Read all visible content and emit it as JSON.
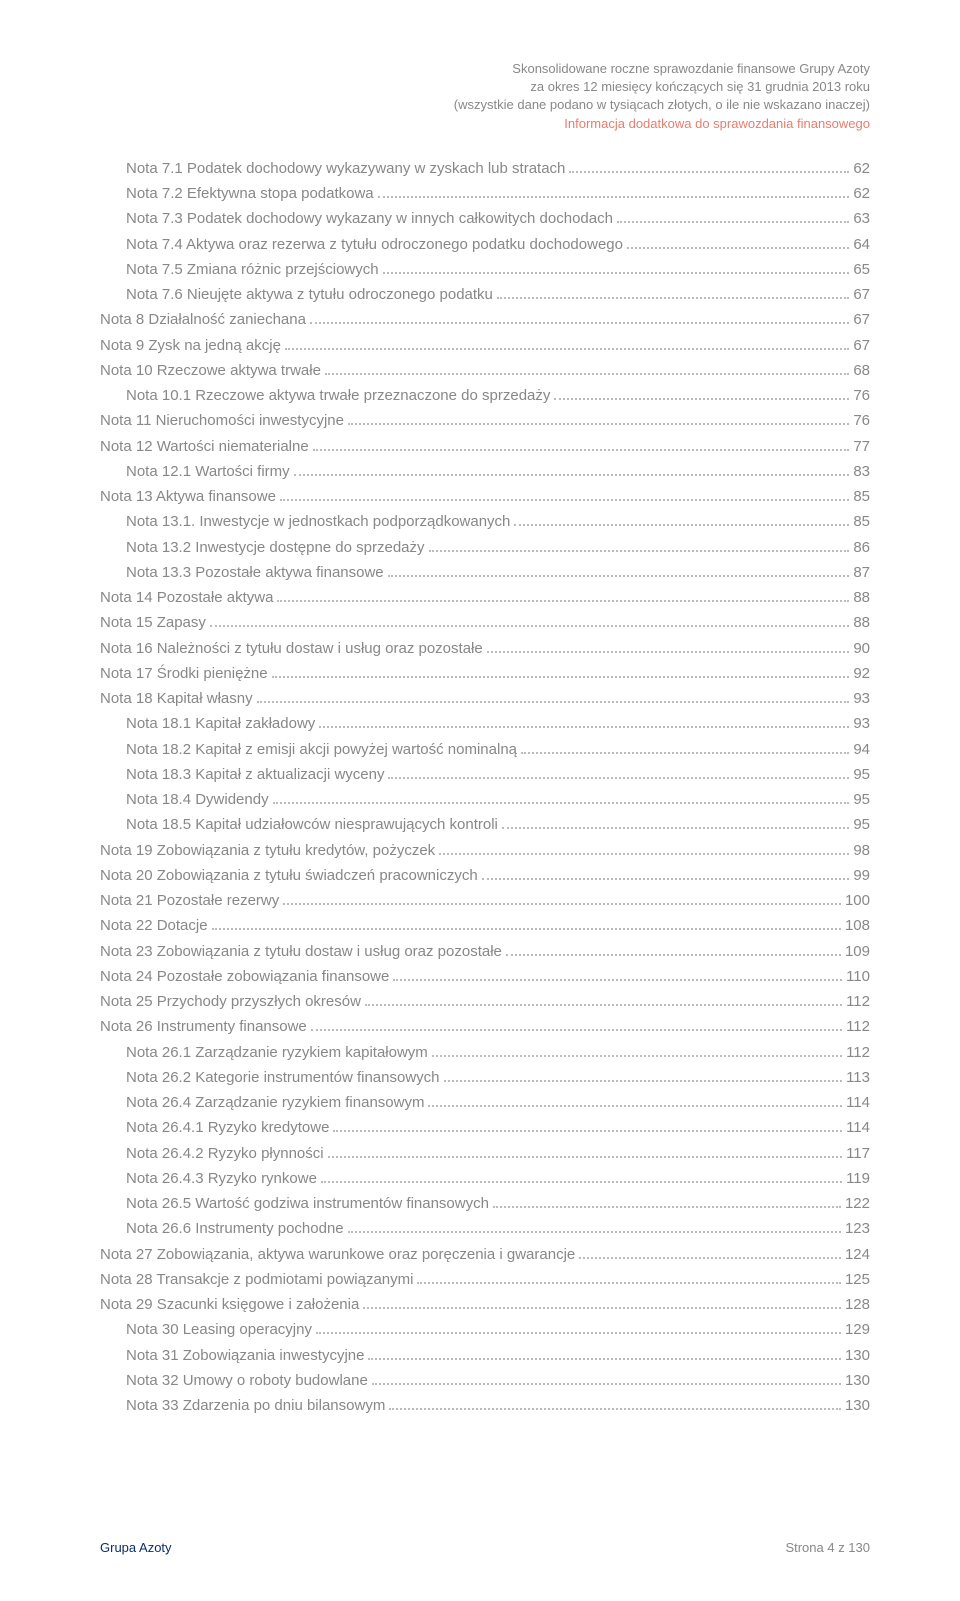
{
  "header": {
    "l1": "Skonsolidowane roczne sprawozdanie finansowe Grupy Azoty",
    "l2": "za okres 12 miesięcy kończących się 31 grudnia 2013 roku",
    "l3": "(wszystkie dane podano w tysiącach złotych, o ile nie wskazano inaczej)",
    "l4": "Informacja dodatkowa do sprawozdania finansowego"
  },
  "toc": [
    {
      "lvl": 1,
      "t": "Nota 7.1 Podatek dochodowy wykazywany w zyskach lub stratach",
      "p": "62"
    },
    {
      "lvl": 1,
      "t": "Nota 7.2 Efektywna stopa podatkowa",
      "p": "62"
    },
    {
      "lvl": 1,
      "t": "Nota 7.3 Podatek dochodowy wykazany w innych całkowitych dochodach",
      "p": "63"
    },
    {
      "lvl": 1,
      "t": "Nota 7.4 Aktywa oraz rezerwa z tytułu odroczonego podatku dochodowego",
      "p": "64"
    },
    {
      "lvl": 1,
      "t": "Nota 7.5 Zmiana różnic przejściowych",
      "p": "65"
    },
    {
      "lvl": 1,
      "t": "Nota 7.6 Nieujęte aktywa z tytułu odroczonego podatku",
      "p": "67"
    },
    {
      "lvl": 0,
      "t": "Nota 8 Działalność zaniechana",
      "p": "67"
    },
    {
      "lvl": 0,
      "t": "Nota 9 Zysk na jedną akcję",
      "p": "67"
    },
    {
      "lvl": 0,
      "t": "Nota 10 Rzeczowe aktywa trwałe",
      "p": "68"
    },
    {
      "lvl": 1,
      "t": "Nota 10.1 Rzeczowe aktywa trwałe przeznaczone do sprzedaży",
      "p": "76"
    },
    {
      "lvl": 0,
      "t": "Nota 11 Nieruchomości inwestycyjne",
      "p": "76"
    },
    {
      "lvl": 0,
      "t": "Nota 12 Wartości niematerialne",
      "p": "77"
    },
    {
      "lvl": 1,
      "t": "Nota 12.1 Wartości firmy",
      "p": "83"
    },
    {
      "lvl": 0,
      "t": "Nota 13 Aktywa finansowe",
      "p": "85"
    },
    {
      "lvl": 1,
      "t": "Nota 13.1. Inwestycje w jednostkach podporządkowanych",
      "p": "85"
    },
    {
      "lvl": 1,
      "t": "Nota 13.2 Inwestycje dostępne do sprzedaży",
      "p": "86"
    },
    {
      "lvl": 1,
      "t": "Nota 13.3 Pozostałe aktywa finansowe",
      "p": "87"
    },
    {
      "lvl": 0,
      "t": "Nota 14 Pozostałe aktywa",
      "p": "88"
    },
    {
      "lvl": 0,
      "t": "Nota 15 Zapasy",
      "p": "88"
    },
    {
      "lvl": 0,
      "t": "Nota 16 Należności z tytułu dostaw i usług oraz pozostałe",
      "p": "90"
    },
    {
      "lvl": 0,
      "t": "Nota 17 Środki pieniężne",
      "p": "92"
    },
    {
      "lvl": 0,
      "t": "Nota 18 Kapitał własny",
      "p": "93"
    },
    {
      "lvl": 1,
      "t": "Nota 18.1 Kapitał zakładowy",
      "p": "93"
    },
    {
      "lvl": 1,
      "t": "Nota 18.2 Kapitał z emisji akcji powyżej wartość nominalną",
      "p": "94"
    },
    {
      "lvl": 1,
      "t": "Nota 18.3 Kapitał z aktualizacji wyceny",
      "p": "95"
    },
    {
      "lvl": 1,
      "t": "Nota 18.4 Dywidendy",
      "p": "95"
    },
    {
      "lvl": 1,
      "t": "Nota 18.5 Kapitał udziałowców niesprawujących kontroli",
      "p": "95"
    },
    {
      "lvl": 0,
      "t": "Nota 19 Zobowiązania z tytułu kredytów, pożyczek",
      "p": "98"
    },
    {
      "lvl": 0,
      "t": "Nota 20 Zobowiązania z tytułu świadczeń pracowniczych",
      "p": "99"
    },
    {
      "lvl": 0,
      "t": "Nota 21 Pozostałe rezerwy",
      "p": "100"
    },
    {
      "lvl": 0,
      "t": "Nota 22 Dotacje",
      "p": "108"
    },
    {
      "lvl": 0,
      "t": "Nota 23 Zobowiązania z tytułu dostaw i usług oraz pozostałe",
      "p": "109"
    },
    {
      "lvl": 0,
      "t": "Nota 24 Pozostałe zobowiązania finansowe",
      "p": "110"
    },
    {
      "lvl": 0,
      "t": "Nota 25 Przychody przyszłych okresów",
      "p": "112"
    },
    {
      "lvl": 0,
      "t": "Nota 26 Instrumenty finansowe",
      "p": "112"
    },
    {
      "lvl": 1,
      "t": "Nota 26.1 Zarządzanie ryzykiem kapitałowym",
      "p": "112"
    },
    {
      "lvl": 1,
      "t": "Nota 26.2 Kategorie instrumentów finansowych",
      "p": "113"
    },
    {
      "lvl": 1,
      "t": "Nota 26.4 Zarządzanie ryzykiem finansowym",
      "p": "114"
    },
    {
      "lvl": 1,
      "t": "Nota 26.4.1 Ryzyko kredytowe",
      "p": "114"
    },
    {
      "lvl": 1,
      "t": "Nota 26.4.2 Ryzyko płynności",
      "p": "117"
    },
    {
      "lvl": 1,
      "t": "Nota 26.4.3 Ryzyko rynkowe",
      "p": "119"
    },
    {
      "lvl": 1,
      "t": "Nota 26.5 Wartość godziwa instrumentów finansowych",
      "p": "122"
    },
    {
      "lvl": 1,
      "t": "Nota 26.6 Instrumenty pochodne",
      "p": "123"
    },
    {
      "lvl": 0,
      "t": "Nota 27 Zobowiązania, aktywa warunkowe oraz poręczenia i gwarancje",
      "p": "124"
    },
    {
      "lvl": 0,
      "t": "Nota 28 Transakcje z podmiotami powiązanymi",
      "p": "125"
    },
    {
      "lvl": 0,
      "t": "Nota 29 Szacunki księgowe i założenia",
      "p": "128"
    },
    {
      "lvl": 1,
      "t": "Nota 30 Leasing operacyjny",
      "p": "129"
    },
    {
      "lvl": 1,
      "t": "Nota 31 Zobowiązania inwestycyjne",
      "p": "130"
    },
    {
      "lvl": 1,
      "t": "Nota 32 Umowy o roboty budowlane",
      "p": "130"
    },
    {
      "lvl": 1,
      "t": "Nota 33 Zdarzenia po dniu bilansowym",
      "p": "130"
    }
  ],
  "footer": {
    "brand": "Grupa Azoty",
    "pager": "Strona 4 z 130"
  }
}
